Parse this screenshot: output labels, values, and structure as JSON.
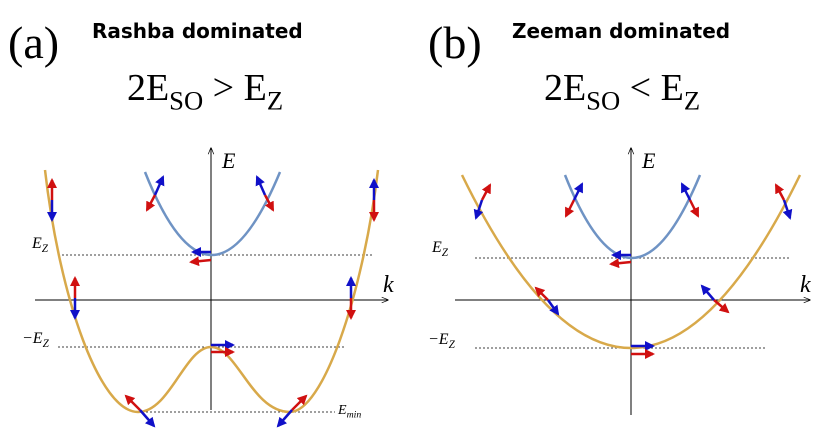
{
  "panels": [
    {
      "letter": "(a)",
      "title": "Rashba dominated",
      "condition": [
        "2E",
        "SO",
        " > E",
        "Z"
      ],
      "axis_e": "E",
      "axis_k": "k",
      "level_upper": [
        "E",
        "Z"
      ],
      "level_lower": [
        "−E",
        "Z"
      ],
      "level_min": [
        "E",
        "min"
      ]
    },
    {
      "letter": "(b)",
      "title": "Zeeman dominated",
      "condition": [
        "2E",
        "SO",
        " < E",
        "Z"
      ],
      "axis_e": "E",
      "axis_k": "k",
      "level_upper": [
        "E",
        "Z"
      ],
      "level_lower": [
        "−E",
        "Z"
      ]
    }
  ]
}
